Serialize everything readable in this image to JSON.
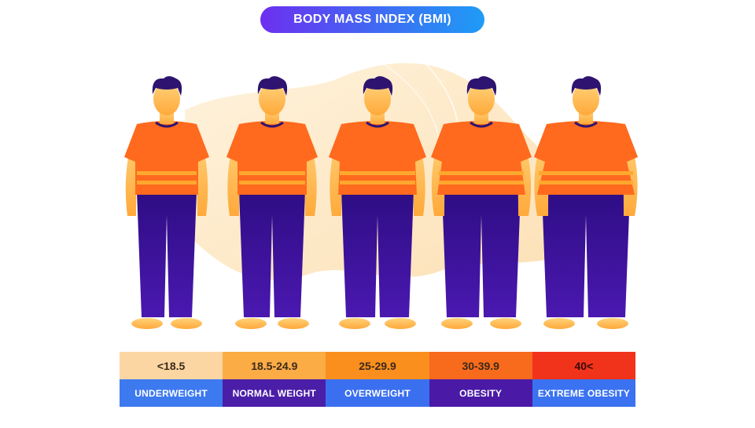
{
  "title": "BODY MASS INDEX (BMI)",
  "categories": [
    {
      "range": "<18.5",
      "label": "UNDERWEIGHT",
      "range_color": "#fbd6a3",
      "label_color": "#3d7af0",
      "body": "underweight"
    },
    {
      "range": "18.5-24.9",
      "label": "NORMAL WEIGHT",
      "range_color": "#fbac45",
      "label_color": "#4b1ea8",
      "body": "normal"
    },
    {
      "range": "25-29.9",
      "label": "OVERWEIGHT",
      "range_color": "#fa8f1e",
      "label_color": "#3a6ff0",
      "body": "overweight"
    },
    {
      "range": "30-39.9",
      "label": "OBESITY",
      "range_color": "#f86a1c",
      "label_color": "#4a1aa6",
      "body": "obese"
    },
    {
      "range": "40<",
      "label": "EXTREME OBESITY",
      "range_color": "#f2331c",
      "label_color": "#3a72f1",
      "body": "extreme"
    }
  ],
  "colors": {
    "shirt": "#ff6a1e",
    "shirt_stripe": "#ffa82e",
    "pants": "#3a0f8f",
    "skin": "#ffc25a",
    "hair": "#2e1470",
    "background_blob": "#fde5bd"
  }
}
